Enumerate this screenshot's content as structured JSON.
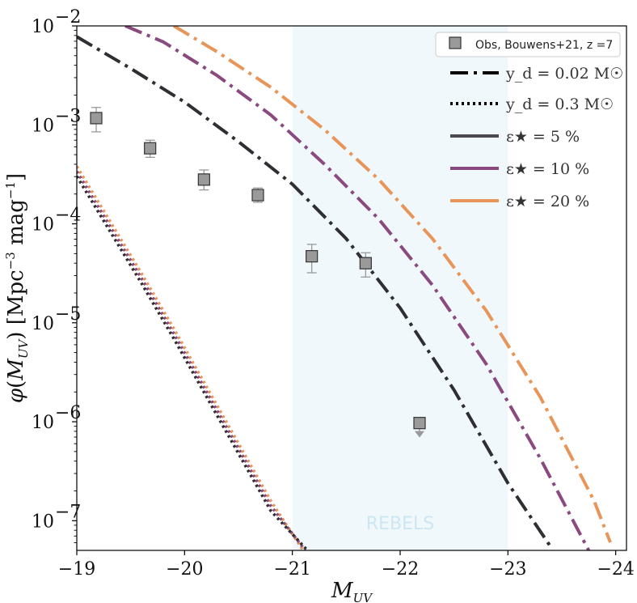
{
  "chart_data": {
    "type": "line",
    "xlabel": "M_UV",
    "ylabel": "φ(M_UV) [Mpc⁻³ mag⁻¹]",
    "xlim": [
      -19,
      -24.1
    ],
    "ylim_log10": [
      -7.3,
      -2
    ],
    "x_ticks": [
      {
        "value": -19,
        "label": "−19"
      },
      {
        "value": -20,
        "label": "−20"
      },
      {
        "value": -21,
        "label": "−21"
      },
      {
        "value": -22,
        "label": "−22"
      },
      {
        "value": -23,
        "label": "−23"
      },
      {
        "value": -24,
        "label": "−24"
      }
    ],
    "y_ticks": [
      {
        "log": -2,
        "label": "10",
        "exp": "−2"
      },
      {
        "log": -3,
        "label": "10",
        "exp": "−3"
      },
      {
        "log": -4,
        "label": "10",
        "exp": "−4"
      },
      {
        "log": -5,
        "label": "10",
        "exp": "−5"
      },
      {
        "log": -6,
        "label": "10",
        "exp": "−6"
      },
      {
        "log": -7,
        "label": "10",
        "exp": "−7"
      }
    ],
    "shaded_region": {
      "label": "REBELS",
      "x_from": -21,
      "x_to": -23,
      "color": "#f0f8fc"
    },
    "observations": {
      "name": "Obs, Bouwens+21, z =7",
      "points": [
        {
          "x": -19.18,
          "y": 0.00117,
          "y_low": 0.00085,
          "y_high": 0.0015
        },
        {
          "x": -19.68,
          "y": 0.00058,
          "y_low": 0.00047,
          "y_high": 0.0007
        },
        {
          "x": -20.18,
          "y": 0.00028,
          "y_low": 0.00022,
          "y_high": 0.00035
        },
        {
          "x": -20.68,
          "y": 0.000195,
          "y_low": 0.000165,
          "y_high": 0.00023
        },
        {
          "x": -21.18,
          "y": 4.7e-05,
          "y_low": 3.2e-05,
          "y_high": 6.2e-05
        },
        {
          "x": -21.68,
          "y": 4e-05,
          "y_low": 2.9e-05,
          "y_high": 5.1e-05
        },
        {
          "x": -22.18,
          "y": 9.7e-07,
          "upper_limit": true
        }
      ]
    },
    "series": [
      {
        "name": "eps5_dashdot",
        "color": "#2f2f33",
        "style": "dashdot",
        "x": [
          -19,
          -19.5,
          -20,
          -20.5,
          -21,
          -21.5,
          -22,
          -22.5,
          -23,
          -23.4
        ],
        "log_y": [
          -2.11,
          -2.43,
          -2.77,
          -3.17,
          -3.6,
          -4.15,
          -4.85,
          -5.68,
          -6.62,
          -7.27
        ]
      },
      {
        "name": "eps10_dashdot",
        "color": "#8a4a80",
        "style": "dashdot",
        "x": [
          -19.45,
          -19.8,
          -20.3,
          -20.8,
          -21.3,
          -21.8,
          -22.3,
          -22.8,
          -23.3,
          -23.75
        ],
        "log_y": [
          -2.0,
          -2.16,
          -2.5,
          -2.9,
          -3.4,
          -3.95,
          -4.62,
          -5.42,
          -6.37,
          -7.3
        ]
      },
      {
        "name": "eps20_dashdot",
        "color": "#e8955a",
        "style": "dashdot",
        "x": [
          -19.9,
          -20.3,
          -20.8,
          -21.3,
          -21.8,
          -22.3,
          -22.8,
          -23.3,
          -23.8,
          -23.95
        ],
        "log_y": [
          -2.0,
          -2.26,
          -2.62,
          -3.05,
          -3.55,
          -4.15,
          -4.88,
          -5.75,
          -6.8,
          -7.22
        ]
      },
      {
        "name": "eps20_dotted",
        "color": "#e8955a",
        "style": "dotted",
        "x": [
          -19,
          -19.3,
          -19.6,
          -19.9,
          -20.2,
          -20.5,
          -20.8,
          -21.1
        ],
        "log_y": [
          -3.42,
          -3.96,
          -4.5,
          -5.06,
          -5.64,
          -6.22,
          -6.8,
          -7.3
        ]
      },
      {
        "name": "eps10_dotted",
        "color": "#8a4a80",
        "style": "dotted",
        "x": [
          -19,
          -19.3,
          -19.6,
          -19.9,
          -20.2,
          -20.5,
          -20.8,
          -21.12
        ],
        "log_y": [
          -3.47,
          -4.01,
          -4.55,
          -5.11,
          -5.69,
          -6.27,
          -6.85,
          -7.3
        ]
      },
      {
        "name": "eps5_dotted",
        "color": "#2f2f33",
        "style": "dotted",
        "x": [
          -19,
          -19.3,
          -19.6,
          -19.9,
          -20.2,
          -20.5,
          -20.8,
          -21.14
        ],
        "log_y": [
          -3.52,
          -4.06,
          -4.6,
          -5.16,
          -5.74,
          -6.32,
          -6.9,
          -7.3
        ]
      }
    ],
    "legend": {
      "placement": "top-right",
      "obs_label": "Obs, Bouwens+21, z =7",
      "entries": [
        {
          "label": "y_d = 0.02 M☉",
          "style": "dashdot",
          "color": "#000000"
        },
        {
          "label": "y_d = 0.3 M☉",
          "style": "dotted",
          "color": "#000000"
        },
        {
          "label": "ε★ = 5 %",
          "style": "solid",
          "color": "#4a4a4f"
        },
        {
          "label": "ε★ = 10 %",
          "style": "solid",
          "color": "#8a4a80"
        },
        {
          "label": "ε★ = 20 %",
          "style": "solid",
          "color": "#e8955a"
        }
      ]
    }
  }
}
